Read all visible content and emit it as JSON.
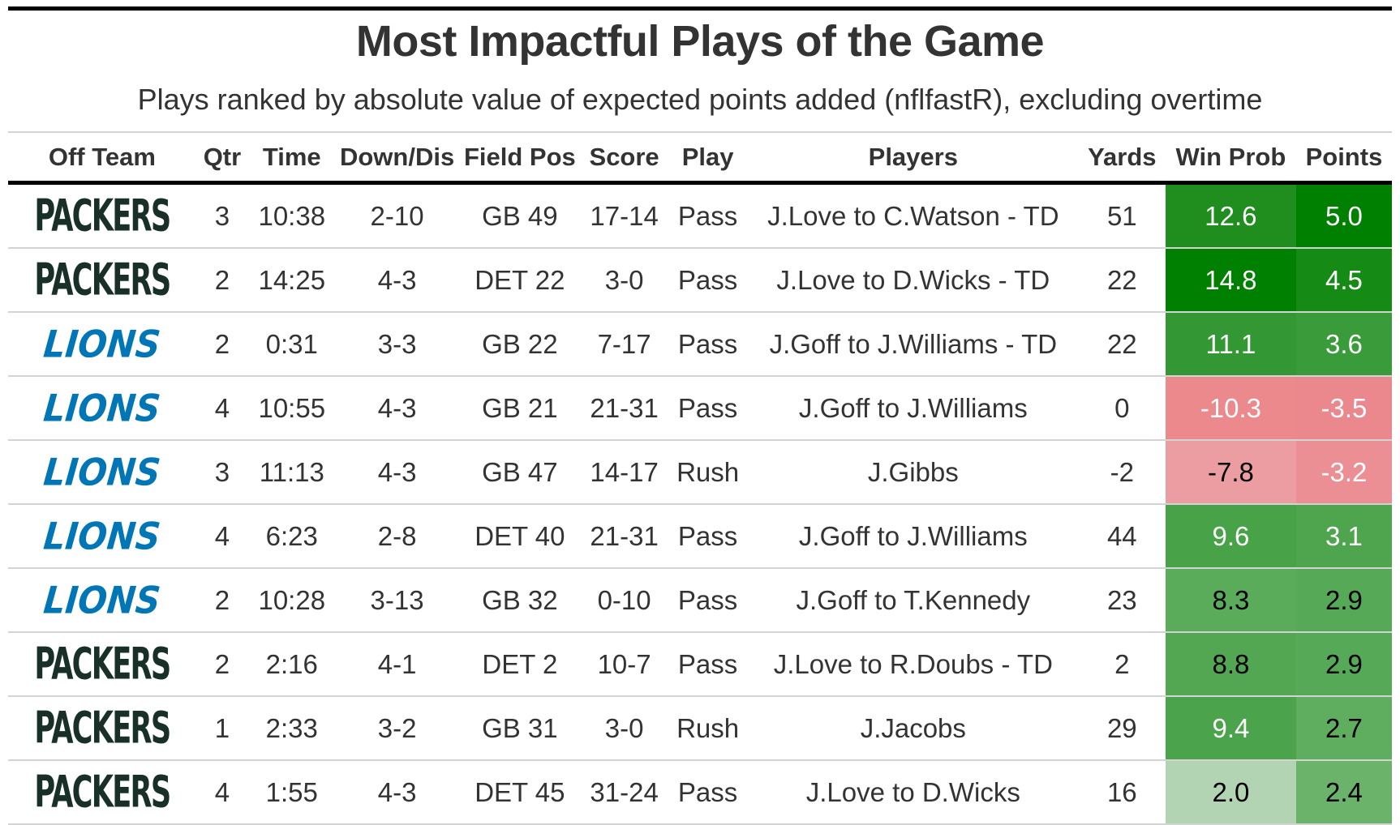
{
  "title": "Most Impactful Plays of the Game",
  "subtitle": "Plays ranked by absolute value of expected points added (nflfastR), excluding overtime",
  "columns": [
    "Off Team",
    "Qtr",
    "Time",
    "Down/Dis",
    "Field Pos",
    "Score",
    "Play",
    "Players",
    "Yards",
    "Win Prob",
    "Points"
  ],
  "logos": {
    "GB": "PACKERS",
    "DET": "LIONS"
  },
  "colors": {
    "pos_max": "#008000",
    "neg_max": "#e8646a",
    "zero": "#f2f2f2",
    "packers": "#183028",
    "lions": "#0076b6"
  },
  "chart_data": {
    "type": "table",
    "title": "Most Impactful Plays of the Game",
    "subtitle": "Plays ranked by absolute value of expected points added (nflfastR), excluding overtime",
    "rows": [
      {
        "team": "GB",
        "qtr": "3",
        "time": "10:38",
        "down": "2-10",
        "field": "GB 49",
        "score": "17-14",
        "play": "Pass",
        "players": "J.Love to C.Watson - TD",
        "yards": "51",
        "win_prob": "12.6",
        "points": "5.0"
      },
      {
        "team": "GB",
        "qtr": "2",
        "time": "14:25",
        "down": "4-3",
        "field": "DET 22",
        "score": "3-0",
        "play": "Pass",
        "players": "J.Love to D.Wicks - TD",
        "yards": "22",
        "win_prob": "14.8",
        "points": "4.5"
      },
      {
        "team": "DET",
        "qtr": "2",
        "time": "0:31",
        "down": "3-3",
        "field": "GB 22",
        "score": "7-17",
        "play": "Pass",
        "players": "J.Goff to J.Williams - TD",
        "yards": "22",
        "win_prob": "11.1",
        "points": "3.6"
      },
      {
        "team": "DET",
        "qtr": "4",
        "time": "10:55",
        "down": "4-3",
        "field": "GB 21",
        "score": "21-31",
        "play": "Pass",
        "players": "J.Goff to J.Williams",
        "yards": "0",
        "win_prob": "-10.3",
        "points": "-3.5"
      },
      {
        "team": "DET",
        "qtr": "3",
        "time": "11:13",
        "down": "4-3",
        "field": "GB 47",
        "score": "14-17",
        "play": "Rush",
        "players": "J.Gibbs",
        "yards": "-2",
        "win_prob": "-7.8",
        "points": "-3.2"
      },
      {
        "team": "DET",
        "qtr": "4",
        "time": "6:23",
        "down": "2-8",
        "field": "DET 40",
        "score": "21-31",
        "play": "Pass",
        "players": "J.Goff to J.Williams",
        "yards": "44",
        "win_prob": "9.6",
        "points": "3.1"
      },
      {
        "team": "DET",
        "qtr": "2",
        "time": "10:28",
        "down": "3-13",
        "field": "GB 32",
        "score": "0-10",
        "play": "Pass",
        "players": "J.Goff to T.Kennedy",
        "yards": "23",
        "win_prob": "8.3",
        "points": "2.9"
      },
      {
        "team": "GB",
        "qtr": "2",
        "time": "2:16",
        "down": "4-1",
        "field": "DET 2",
        "score": "10-7",
        "play": "Pass",
        "players": "J.Love to R.Doubs - TD",
        "yards": "2",
        "win_prob": "8.8",
        "points": "2.9"
      },
      {
        "team": "GB",
        "qtr": "1",
        "time": "2:33",
        "down": "3-2",
        "field": "GB 31",
        "score": "3-0",
        "play": "Rush",
        "players": "J.Jacobs",
        "yards": "29",
        "win_prob": "9.4",
        "points": "2.7"
      },
      {
        "team": "GB",
        "qtr": "4",
        "time": "1:55",
        "down": "4-3",
        "field": "DET 45",
        "score": "31-24",
        "play": "Pass",
        "players": "J.Love to D.Wicks",
        "yards": "16",
        "win_prob": "2.0",
        "points": "2.4"
      }
    ]
  }
}
